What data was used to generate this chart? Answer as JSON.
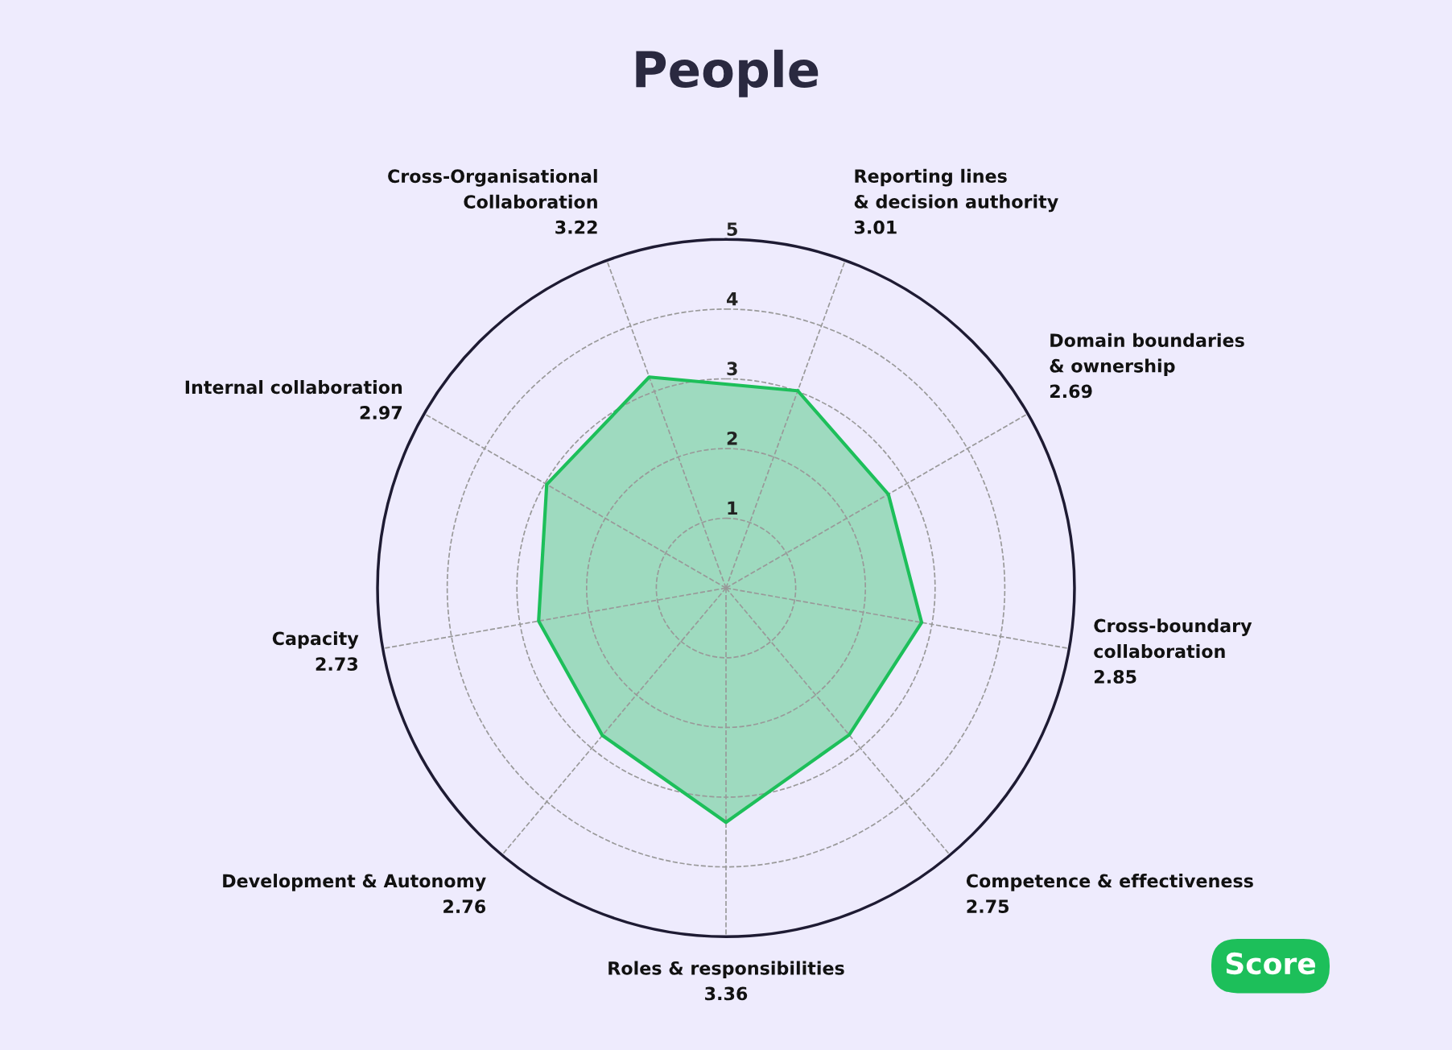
{
  "chart_data": {
    "type": "radar",
    "title": "People",
    "categories": [
      "Reporting lines\n& decision authority\n3.01",
      "Domain boundaries\n& ownership\n2.69",
      "Cross-boundary\ncollaboration\n2.85",
      "Competence & effectiveness\n2.75",
      "Roles & responsibilities\n3.36",
      "Development & Autonomy\n2.76",
      "Capacity\n2.73",
      "Internal collaboration\n2.97",
      "Cross-Organisational\nCollaboration\n3.22"
    ],
    "series": [
      {
        "name": "Score",
        "color": "#1dbf5a",
        "values": [
          3.01,
          2.69,
          2.85,
          2.75,
          3.36,
          2.76,
          2.73,
          2.97,
          3.22
        ]
      }
    ],
    "ylim": [
      0,
      5
    ],
    "yticks": [
      1,
      2,
      3,
      4,
      5
    ],
    "grid": true,
    "legend": "bottom right",
    "line_style": "solid",
    "marker": "none"
  }
}
